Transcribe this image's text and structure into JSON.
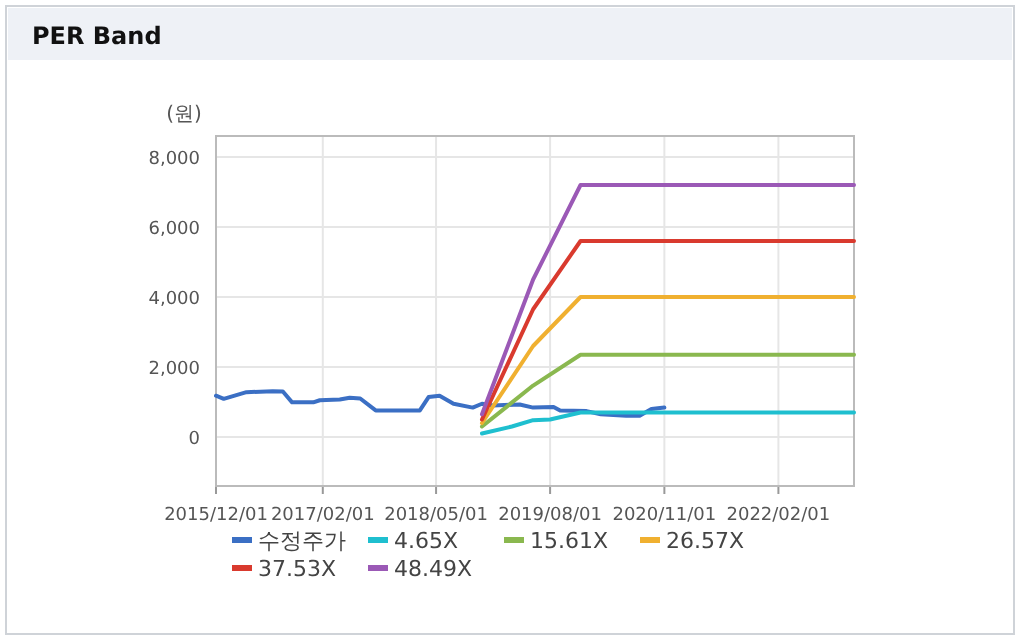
{
  "chart_data": {
    "type": "line",
    "title": "PER Band",
    "ylabel": "(원)",
    "xlim": [
      "2015-12-01",
      "2022-12-01"
    ],
    "ylim": [
      -1400,
      8600
    ],
    "xticks": [
      {
        "value": "2015-12-01",
        "label": "2015/12/01"
      },
      {
        "value": "2017-02-01",
        "label": "2017/02/01"
      },
      {
        "value": "2018-05-01",
        "label": "2018/05/01"
      },
      {
        "value": "2019-08-01",
        "label": "2019/08/01"
      },
      {
        "value": "2020-11-01",
        "label": "2020/11/01"
      },
      {
        "value": "2022-02-01",
        "label": "2022/02/01"
      }
    ],
    "yticks": [
      0,
      {
        "value": 2000,
        "label": "2,000"
      },
      {
        "value": 4000,
        "label": "4,000"
      },
      {
        "value": 6000,
        "label": "6,000"
      },
      {
        "value": 8000,
        "label": "8,000"
      }
    ],
    "grid": true,
    "legend": "bottom",
    "marker": "none",
    "line_style": "solid",
    "series": [
      {
        "name": "수정주가",
        "color": "#3b6fc4",
        "x": [
          "2015-12-01",
          "2016-01-01",
          "2016-04-01",
          "2016-07-15",
          "2016-08-25",
          "2016-10-01",
          "2016-12-25",
          "2017-01-20",
          "2017-04-10",
          "2017-05-20",
          "2017-07-01",
          "2017-09-01",
          "2018-02-25",
          "2018-04-01",
          "2018-05-15",
          "2018-07-10",
          "2018-09-25",
          "2018-11-01",
          "2018-12-15",
          "2019-04-01",
          "2019-05-25",
          "2019-08-15",
          "2019-09-10",
          "2019-12-25",
          "2020-02-20",
          "2020-06-01",
          "2020-07-25",
          "2020-09-10",
          "2020-11-01"
        ],
        "values": [
          1180,
          1090,
          1280,
          1310,
          1300,
          990,
          990,
          1050,
          1070,
          1120,
          1100,
          760,
          760,
          1140,
          1180,
          950,
          840,
          950,
          900,
          930,
          840,
          860,
          760,
          740,
          650,
          610,
          610,
          800,
          840
        ]
      },
      {
        "name": "4.65X",
        "color": "#1fbfcf",
        "x": [
          "2018-11-01",
          "2019-03-01",
          "2019-05-25",
          "2019-08-01",
          "2019-12-01",
          "2022-12-01"
        ],
        "values": [
          100,
          300,
          480,
          500,
          700,
          700
        ]
      },
      {
        "name": "15.61X",
        "color": "#8ab84f",
        "x": [
          "2018-11-01",
          "2019-05-25",
          "2019-12-01",
          "2022-12-01"
        ],
        "values": [
          300,
          1470,
          2350,
          2350
        ]
      },
      {
        "name": "26.57X",
        "color": "#f0b030",
        "x": [
          "2018-11-01",
          "2019-05-25",
          "2019-12-01",
          "2022-12-01"
        ],
        "values": [
          400,
          2600,
          4000,
          4000
        ]
      },
      {
        "name": "37.53X",
        "color": "#d93a2e",
        "x": [
          "2018-11-01",
          "2019-05-25",
          "2019-12-01",
          "2022-12-01"
        ],
        "values": [
          500,
          3650,
          5600,
          5600
        ]
      },
      {
        "name": "48.49X",
        "color": "#9b59b6",
        "x": [
          "2018-11-01",
          "2019-05-25",
          "2019-12-01",
          "2022-12-01"
        ],
        "values": [
          650,
          4500,
          7200,
          7200
        ]
      }
    ]
  }
}
